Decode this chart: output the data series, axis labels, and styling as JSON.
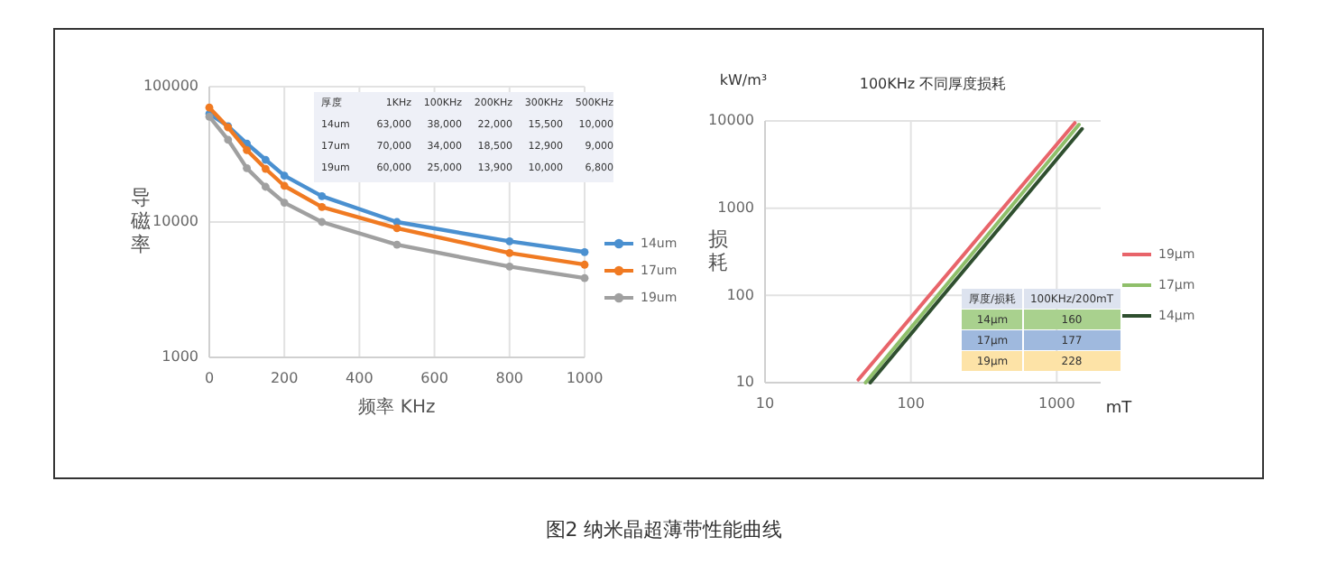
{
  "chart_data": [
    {
      "type": "line",
      "xlabel": "频率 KHz",
      "ylabel": "导磁率",
      "log": "y",
      "xlim": [
        0,
        1000
      ],
      "ylim": [
        1000,
        100000
      ],
      "xticks": [
        0,
        200,
        400,
        600,
        800,
        1000
      ],
      "yticks": [
        1000,
        10000,
        100000
      ],
      "grid": true,
      "legend": "right",
      "marker": "circle",
      "x": [
        0,
        50,
        100,
        150,
        200,
        300,
        500,
        800,
        1000
      ],
      "series": [
        {
          "name": "14um",
          "color": "#4a90d0",
          "values": [
            63000,
            51000,
            38000,
            28800,
            22000,
            15500,
            10000,
            7200,
            6000
          ]
        },
        {
          "name": "17um",
          "color": "#f07a22",
          "values": [
            70000,
            50000,
            34000,
            24700,
            18500,
            12900,
            9000,
            5900,
            4840
          ]
        },
        {
          "name": "19um",
          "color": "#a0a0a0",
          "values": [
            60000,
            40500,
            25000,
            18200,
            13900,
            10000,
            6800,
            4690,
            3850
          ]
        }
      ],
      "annotations": [
        "厚度 1KHz 100KHz 200KHz 300KHz 500KHz",
        "14um 63,000 38,000 22,000 15,500 10,000",
        "17um 70,000 34,000 18,500 12,900 9,000",
        "19um 60,000 25,000 13,900 10,000 6,800"
      ]
    },
    {
      "type": "line",
      "title": "100KHz 不同厚度损耗",
      "xlabel": "mT",
      "ylabel": "损耗",
      "log": "xy",
      "xlim": [
        10,
        2000
      ],
      "ylim": [
        10,
        10000
      ],
      "xticks": [
        10,
        100,
        1000
      ],
      "yticks": [
        10,
        100,
        1000,
        10000
      ],
      "grid": true,
      "legend": "right",
      "line_style": "solid",
      "series": [
        {
          "name": "19μm",
          "color": "#e8646a",
          "x": [
            43.6,
            1330
          ],
          "values": [
            10.8,
            9500
          ]
        },
        {
          "name": "17μm",
          "color": "#8fbf6a",
          "x": [
            48.9,
            1420
          ],
          "values": [
            10,
            9100
          ]
        },
        {
          "name": "14μm",
          "color": "#2f4f2f",
          "x": [
            52.7,
            1490
          ],
          "values": [
            10,
            8100
          ]
        }
      ],
      "annotations": [
        "kW/m³",
        "厚度/损耗 100KHz/200mT",
        "14μm 160",
        "17μm 177",
        "19μm 228",
        "图2 纳米晶超薄带性能曲线"
      ]
    }
  ]
}
